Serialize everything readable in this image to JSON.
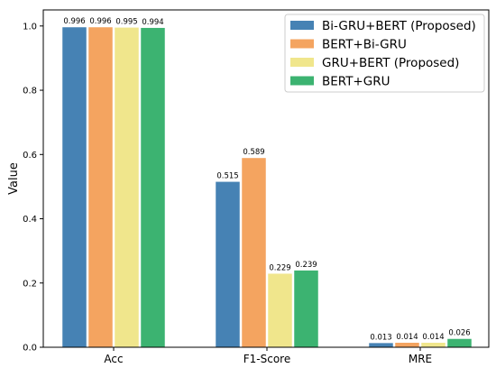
{
  "chart_data": {
    "type": "bar",
    "title": "",
    "xlabel": "",
    "ylabel": "Value",
    "ylim": [
      0,
      1.05
    ],
    "yticks": [
      0.0,
      0.2,
      0.4,
      0.6,
      0.8,
      1.0
    ],
    "ytick_labels": [
      "0.0",
      "0.2",
      "0.4",
      "0.6",
      "0.8",
      "1.0"
    ],
    "categories": [
      "Acc",
      "F1-Score",
      "MRE"
    ],
    "grid": false,
    "legend_position": "top-right",
    "series": [
      {
        "name": "Bi-GRU+BERT (Proposed)",
        "color": "#4682b4",
        "values": [
          0.996,
          0.515,
          0.013
        ],
        "labels": [
          "0.996",
          "0.515",
          "0.013"
        ]
      },
      {
        "name": "BERT+Bi-GRU",
        "color": "#f4a460",
        "values": [
          0.996,
          0.589,
          0.014
        ],
        "labels": [
          "0.996",
          "0.589",
          "0.014"
        ]
      },
      {
        "name": "GRU+BERT (Proposed)",
        "color": "#f0e68c",
        "values": [
          0.995,
          0.229,
          0.014
        ],
        "labels": [
          "0.995",
          "0.229",
          "0.014"
        ]
      },
      {
        "name": "BERT+GRU",
        "color": "#3cb371",
        "values": [
          0.994,
          0.239,
          0.026
        ],
        "labels": [
          "0.994",
          "0.239",
          "0.026"
        ]
      }
    ]
  }
}
